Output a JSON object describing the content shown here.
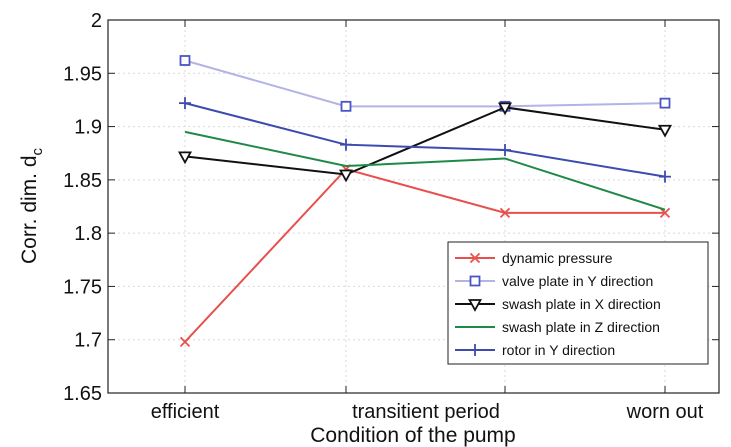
{
  "chart_data": {
    "type": "line",
    "categories": [
      "efficient",
      "transitient period",
      "worn out"
    ],
    "x": [
      1,
      2,
      3,
      4
    ],
    "xlabel": "Condition of the pump",
    "ylabel_main": "Corr. dim. d",
    "ylabel_sub": "c",
    "ylim": [
      1.65,
      2.0
    ],
    "yticks": [
      "1.65",
      "1.7",
      "1.75",
      "1.8",
      "1.85",
      "1.9",
      "1.95",
      "2"
    ],
    "grid": true,
    "legend_position": "bottom-right",
    "series": [
      {
        "name": "dynamic pressure",
        "color": "#e8504d",
        "marker": "x-mark",
        "values": [
          1.698,
          1.86,
          1.819,
          1.819
        ]
      },
      {
        "name": "valve plate in Y direction",
        "color": "#b3b3e6",
        "marker": "square",
        "values": [
          1.962,
          1.919,
          1.919,
          1.922
        ]
      },
      {
        "name": "swash plate in X direction",
        "color": "#111111",
        "marker": "triangle-down",
        "values": [
          1.872,
          1.855,
          1.918,
          1.897
        ]
      },
      {
        "name": "swash plate in Z direction",
        "color": "#1e8a45",
        "marker": "none",
        "values": [
          1.895,
          1.863,
          1.87,
          1.822
        ]
      },
      {
        "name": "rotor in Y direction",
        "color": "#3b4bb0",
        "marker": "plus",
        "values": [
          1.922,
          1.883,
          1.878,
          1.853
        ]
      }
    ]
  }
}
